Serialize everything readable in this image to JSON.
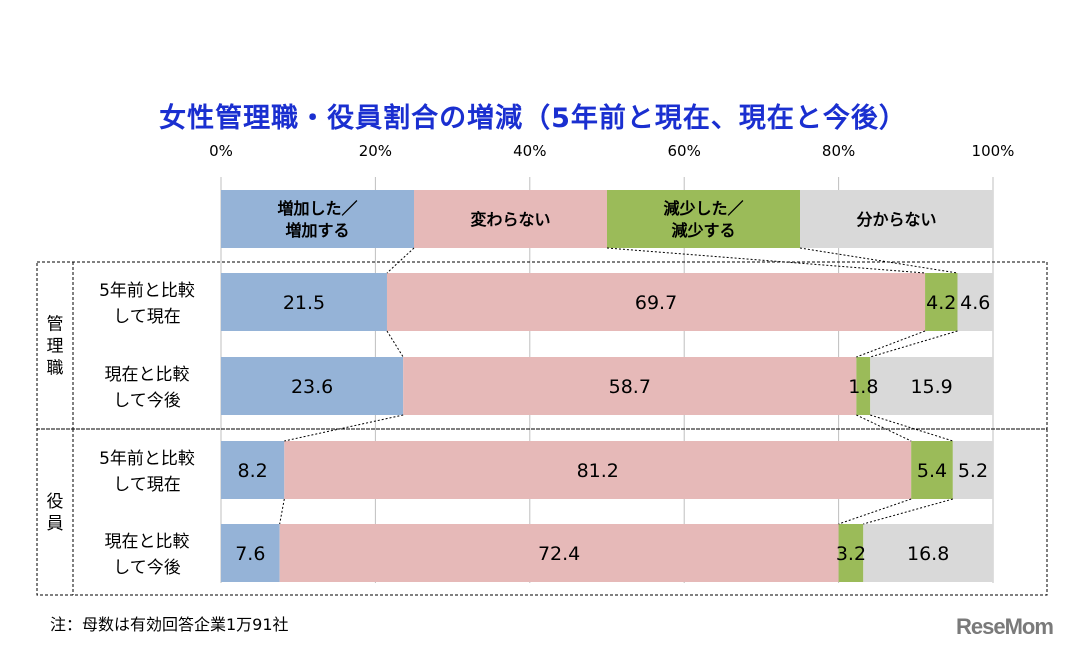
{
  "chart_data": {
    "type": "bar",
    "stacked": true,
    "orientation": "horizontal",
    "title": "女性管理職・役員割合の増減（5年前と現在、現在と今後）",
    "x_ticks": [
      "0%",
      "20%",
      "40%",
      "60%",
      "80%",
      "100%"
    ],
    "xlim": [
      0,
      100
    ],
    "grid": true,
    "legend": {
      "position": "top",
      "entries": [
        "増加した／\n増加する",
        "変わらない",
        "減少した／\n減少する",
        "分からない"
      ]
    },
    "groups": [
      {
        "name": "管理職",
        "rows": [
          {
            "label": "5年前と比較\nして現在",
            "values": [
              21.5,
              69.7,
              4.2,
              4.6
            ]
          },
          {
            "label": "現在と比較\nして今後",
            "values": [
              23.6,
              58.7,
              1.8,
              15.9
            ]
          }
        ]
      },
      {
        "name": "役員",
        "rows": [
          {
            "label": "5年前と比較\nして現在",
            "values": [
              8.2,
              81.2,
              5.4,
              5.2
            ]
          },
          {
            "label": "現在と比較\nして今後",
            "values": [
              7.6,
              72.4,
              3.2,
              16.8
            ]
          }
        ]
      }
    ],
    "colors": [
      "#95b3d7",
      "#e6b9b8",
      "#9bbb59",
      "#d9d9d9"
    ]
  },
  "note": "注：母数は有効回答企業1万91社",
  "logo": "ReseMom"
}
